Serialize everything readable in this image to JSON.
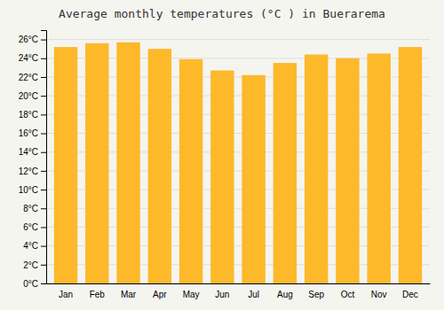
{
  "chart_data": {
    "type": "bar",
    "title": "Average monthly temperatures (°C ) in Buerarema",
    "categories": [
      "Jan",
      "Feb",
      "Mar",
      "Apr",
      "May",
      "Jun",
      "Jul",
      "Aug",
      "Sep",
      "Oct",
      "Nov",
      "Dec"
    ],
    "values": [
      25.2,
      25.6,
      25.7,
      25.0,
      23.9,
      22.7,
      22.2,
      23.5,
      24.4,
      24.0,
      24.5,
      25.2
    ],
    "color": "#FDB92A",
    "ylim": [
      0,
      27
    ],
    "yticks": [
      {
        "value": 0,
        "label": "0°C"
      },
      {
        "value": 2,
        "label": "2°C"
      },
      {
        "value": 4,
        "label": "4°C"
      },
      {
        "value": 6,
        "label": "6°C"
      },
      {
        "value": 8,
        "label": "8°C"
      },
      {
        "value": 10,
        "label": "10°C"
      },
      {
        "value": 12,
        "label": "12°C"
      },
      {
        "value": 14,
        "label": "14°C"
      },
      {
        "value": 16,
        "label": "16°C"
      },
      {
        "value": 18,
        "label": "18°C"
      },
      {
        "value": 20,
        "label": "20°C"
      },
      {
        "value": 22,
        "label": "22°C"
      },
      {
        "value": 24,
        "label": "24°C"
      },
      {
        "value": 26,
        "label": "26°C"
      }
    ],
    "grid": true
  }
}
